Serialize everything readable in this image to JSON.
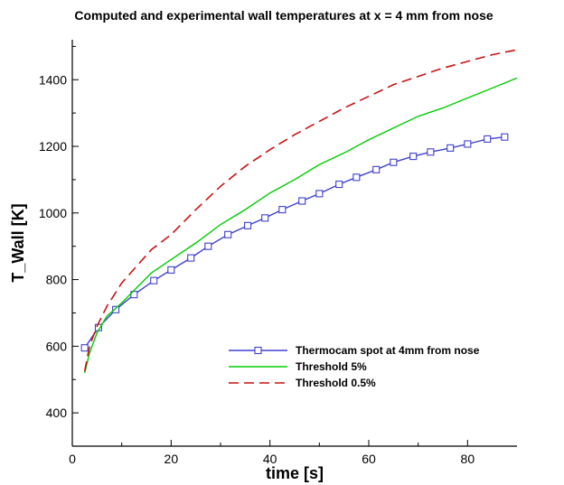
{
  "chart_data": {
    "type": "line",
    "title": "Computed and experimental wall temperatures at x = 4 mm from nose",
    "xlabel": "time [s]",
    "ylabel": "T_Wall [K]",
    "xlim": [
      0,
      90
    ],
    "ylim": [
      300,
      1520
    ],
    "xticks": [
      0,
      20,
      40,
      60,
      80
    ],
    "yticks": [
      400,
      600,
      800,
      1000,
      1200,
      1400
    ],
    "legend_position": "center-right",
    "grid": false,
    "series": [
      {
        "name": "Thermocam spot at 4mm from nose",
        "color": "#4040d0",
        "style": "solid-with-square-markers",
        "x": [
          2.5,
          5.3,
          8.8,
          12.5,
          16.5,
          20.0,
          24.0,
          27.5,
          31.5,
          35.5,
          39.0,
          42.5,
          46.5,
          50.0,
          54.0,
          57.5,
          61.5,
          65.0,
          69.0,
          72.5,
          76.5,
          80.0,
          84.0,
          87.5
        ],
        "y": [
          595,
          656,
          710,
          755,
          797,
          829,
          865,
          900,
          935,
          962,
          985,
          1010,
          1036,
          1058,
          1086,
          1107,
          1130,
          1152,
          1170,
          1183,
          1195,
          1207,
          1222,
          1228
        ]
      },
      {
        "name": "Threshold 5%",
        "color": "#00cc00",
        "style": "solid",
        "x": [
          2.5,
          3.5,
          5,
          7,
          10,
          13,
          16,
          20,
          25,
          30,
          35,
          40,
          45,
          50,
          55,
          60,
          65,
          70,
          75,
          80,
          85,
          90
        ],
        "y": [
          520,
          580,
          640,
          690,
          730,
          775,
          820,
          860,
          910,
          965,
          1010,
          1060,
          1100,
          1145,
          1180,
          1220,
          1255,
          1290,
          1315,
          1345,
          1375,
          1405
        ]
      },
      {
        "name": "Threshold 0.5%",
        "color": "#cc1111",
        "style": "dashed",
        "x": [
          2.5,
          3.5,
          5,
          7,
          10,
          13,
          16,
          20,
          25,
          30,
          35,
          40,
          45,
          50,
          55,
          60,
          65,
          70,
          75,
          80,
          85,
          90
        ],
        "y": [
          525,
          600,
          660,
          720,
          790,
          840,
          890,
          935,
          1010,
          1080,
          1140,
          1190,
          1235,
          1275,
          1315,
          1350,
          1385,
          1410,
          1435,
          1455,
          1475,
          1490
        ]
      }
    ]
  }
}
